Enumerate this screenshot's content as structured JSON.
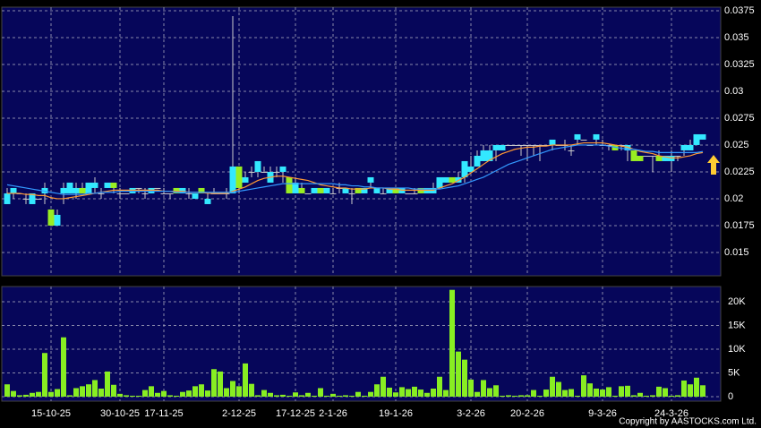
{
  "chart_data": {
    "type": "candlestick",
    "categories": [
      null,
      null,
      null,
      null,
      null,
      null,
      null,
      "15-10-25",
      null,
      null,
      null,
      null,
      null,
      null,
      null,
      null,
      null,
      null,
      "30-10-25",
      null,
      null,
      null,
      null,
      null,
      null,
      "17-11-25",
      null,
      null,
      null,
      null,
      null,
      null,
      null,
      null,
      null,
      null,
      null,
      "2-12-25",
      null,
      null,
      null,
      null,
      null,
      null,
      null,
      null,
      "17-12-25",
      null,
      null,
      null,
      null,
      null,
      "2-1-26",
      null,
      null,
      null,
      null,
      null,
      null,
      null,
      null,
      null,
      "19-1-26",
      null,
      null,
      null,
      null,
      null,
      null,
      null,
      null,
      null,
      null,
      null,
      "3-2-26",
      null,
      null,
      null,
      null,
      null,
      null,
      null,
      null,
      "20-2-26",
      null,
      null,
      null,
      null,
      null,
      null,
      null,
      null,
      null,
      null,
      null,
      "9-3-26",
      null,
      null,
      null,
      null,
      null,
      null,
      null,
      null,
      null,
      null,
      "24-3-26",
      null,
      null,
      null,
      null,
      null
    ],
    "open": [
      0.0195,
      0.0205,
      0.0205,
      0.02,
      0.0195,
      0.02,
      0.0205,
      0.019,
      0.0175,
      0.0205,
      0.0205,
      0.0205,
      0.021,
      0.0205,
      0.021,
      0.0205,
      0.021,
      0.0215,
      0.0205,
      0.0205,
      0.0205,
      0.021,
      0.0205,
      0.0205,
      0.021,
      0.0205,
      0.0205,
      0.021,
      0.0205,
      0.0205,
      0.02,
      0.021,
      0.0195,
      0.0205,
      0.0205,
      0.0205,
      0.0205,
      0.023,
      0.0215,
      0.0225,
      0.0225,
      0.0225,
      0.0215,
      0.0225,
      0.0225,
      0.022,
      0.0205,
      0.021,
      0.0205,
      0.0205,
      0.021,
      0.0205,
      0.0205,
      0.021,
      0.0205,
      0.0205,
      0.021,
      0.0205,
      0.0215,
      0.0205,
      0.0205,
      0.0205,
      0.021,
      0.0205,
      0.0205,
      0.0205,
      0.021,
      0.0205,
      0.0205,
      0.021,
      0.0215,
      0.022,
      0.0215,
      0.022,
      0.0225,
      0.023,
      0.0235,
      0.0235,
      0.0245,
      0.0245,
      0.025,
      0.025,
      0.025,
      0.025,
      0.025,
      0.025,
      0.025,
      0.025,
      0.025,
      0.025,
      0.0245,
      0.0255,
      0.0255,
      0.025,
      0.0255,
      0.025,
      0.025,
      0.025,
      0.025,
      0.0245,
      0.0245,
      0.024,
      0.024,
      0.024,
      0.024,
      0.0235,
      0.0235,
      0.024,
      0.0245,
      0.0245,
      0.025,
      0.0255
    ],
    "high": [
      0.021,
      0.021,
      0.0205,
      0.0205,
      0.0205,
      0.02,
      0.0215,
      0.019,
      0.019,
      0.0215,
      0.0215,
      0.0215,
      0.0215,
      0.0215,
      0.022,
      0.021,
      0.0215,
      0.0215,
      0.021,
      0.0205,
      0.021,
      0.021,
      0.021,
      0.021,
      0.021,
      0.021,
      0.0205,
      0.021,
      0.021,
      0.021,
      0.0205,
      0.021,
      0.0205,
      0.021,
      0.0205,
      0.021,
      0.037,
      0.023,
      0.0225,
      0.023,
      0.0235,
      0.023,
      0.023,
      0.023,
      0.023,
      0.022,
      0.022,
      0.0215,
      0.0205,
      0.021,
      0.021,
      0.021,
      0.021,
      0.0215,
      0.021,
      0.021,
      0.021,
      0.021,
      0.022,
      0.021,
      0.021,
      0.021,
      0.021,
      0.021,
      0.0205,
      0.021,
      0.021,
      0.021,
      0.0215,
      0.022,
      0.022,
      0.022,
      0.0225,
      0.0235,
      0.024,
      0.0245,
      0.025,
      0.025,
      0.025,
      0.025,
      0.025,
      0.025,
      0.025,
      0.025,
      0.025,
      0.025,
      0.025,
      0.0255,
      0.025,
      0.0255,
      0.025,
      0.026,
      0.0255,
      0.025,
      0.026,
      0.0255,
      0.025,
      0.025,
      0.025,
      0.025,
      0.0245,
      0.024,
      0.024,
      0.024,
      0.0245,
      0.024,
      0.0245,
      0.024,
      0.025,
      0.0255,
      0.026,
      0.026
    ],
    "low": [
      0.0195,
      0.02,
      0.0205,
      0.0195,
      0.0195,
      0.02,
      0.0195,
      0.0175,
      0.0175,
      0.0195,
      0.0205,
      0.02,
      0.0205,
      0.0205,
      0.0205,
      0.02,
      0.021,
      0.0205,
      0.02,
      0.0205,
      0.0205,
      0.0205,
      0.02,
      0.0205,
      0.021,
      0.0205,
      0.02,
      0.0205,
      0.0205,
      0.02,
      0.02,
      0.0205,
      0.0195,
      0.0205,
      0.0205,
      0.02,
      0.0205,
      0.0205,
      0.0215,
      0.022,
      0.022,
      0.0225,
      0.0215,
      0.022,
      0.0215,
      0.0205,
      0.0205,
      0.0205,
      0.0205,
      0.0205,
      0.0205,
      0.0205,
      0.0205,
      0.0205,
      0.0205,
      0.0195,
      0.0205,
      0.0205,
      0.021,
      0.0205,
      0.0205,
      0.0205,
      0.0205,
      0.0205,
      0.0205,
      0.0205,
      0.0205,
      0.0205,
      0.0205,
      0.021,
      0.0215,
      0.0215,
      0.0215,
      0.0215,
      0.0225,
      0.023,
      0.0235,
      0.0235,
      0.0235,
      0.0245,
      0.025,
      0.025,
      0.024,
      0.0235,
      0.024,
      0.0235,
      0.025,
      0.0245,
      0.025,
      0.0245,
      0.024,
      0.025,
      0.0255,
      0.025,
      0.025,
      0.025,
      0.0245,
      0.0245,
      0.0245,
      0.0235,
      0.0235,
      0.0235,
      0.024,
      0.0225,
      0.0235,
      0.0235,
      0.0225,
      0.0235,
      0.024,
      0.0245,
      0.025,
      0.0255
    ],
    "close": [
      0.0205,
      0.021,
      0.0205,
      0.02,
      0.0205,
      0.02,
      0.021,
      0.0175,
      0.0185,
      0.021,
      0.0215,
      0.021,
      0.0205,
      0.0215,
      0.0215,
      0.0205,
      0.0215,
      0.021,
      0.0205,
      0.0205,
      0.021,
      0.021,
      0.0205,
      0.021,
      0.021,
      0.0205,
      0.0205,
      0.0205,
      0.021,
      0.0205,
      0.0205,
      0.0205,
      0.02,
      0.0205,
      0.0205,
      0.0205,
      0.023,
      0.021,
      0.022,
      0.0225,
      0.0235,
      0.0225,
      0.0225,
      0.0225,
      0.023,
      0.0205,
      0.0215,
      0.0205,
      0.0205,
      0.021,
      0.0205,
      0.021,
      0.0205,
      0.021,
      0.021,
      0.0205,
      0.0205,
      0.021,
      0.022,
      0.021,
      0.0205,
      0.021,
      0.0205,
      0.021,
      0.0205,
      0.0205,
      0.0205,
      0.021,
      0.021,
      0.022,
      0.022,
      0.0215,
      0.022,
      0.0235,
      0.023,
      0.024,
      0.0245,
      0.0245,
      0.025,
      0.025,
      0.025,
      0.025,
      0.025,
      0.025,
      0.025,
      0.025,
      0.025,
      0.0255,
      0.025,
      0.025,
      0.0245,
      0.026,
      0.0255,
      0.025,
      0.026,
      0.025,
      0.025,
      0.0245,
      0.025,
      0.025,
      0.0235,
      0.0235,
      0.024,
      0.024,
      0.0235,
      0.024,
      0.024,
      0.024,
      0.025,
      0.025,
      0.026,
      0.026
    ],
    "ma_short": [
      0.0205,
      0.0205,
      0.0205,
      0.0204,
      0.0204,
      0.0203,
      0.0203,
      0.0201,
      0.02,
      0.02,
      0.0201,
      0.0202,
      0.0203,
      0.0204,
      0.0205,
      0.0206,
      0.0207,
      0.0208,
      0.0208,
      0.0208,
      0.0208,
      0.0208,
      0.0208,
      0.0208,
      0.0208,
      0.0207,
      0.0207,
      0.0207,
      0.0207,
      0.0206,
      0.0206,
      0.0206,
      0.0205,
      0.0205,
      0.0205,
      0.0205,
      0.0207,
      0.0209,
      0.0211,
      0.0214,
      0.0217,
      0.0219,
      0.022,
      0.0221,
      0.0221,
      0.022,
      0.0219,
      0.0218,
      0.0217,
      0.0215,
      0.0213,
      0.0212,
      0.0211,
      0.021,
      0.021,
      0.0209,
      0.0209,
      0.0209,
      0.021,
      0.021,
      0.021,
      0.0209,
      0.0209,
      0.0208,
      0.0208,
      0.0208,
      0.0208,
      0.0208,
      0.0208,
      0.021,
      0.0212,
      0.0214,
      0.0217,
      0.022,
      0.0224,
      0.0228,
      0.0232,
      0.0236,
      0.0239,
      0.0242,
      0.0244,
      0.0246,
      0.0247,
      0.0248,
      0.0248,
      0.0249,
      0.0249,
      0.025,
      0.025,
      0.025,
      0.025,
      0.0251,
      0.0252,
      0.0252,
      0.0252,
      0.0252,
      0.0251,
      0.025,
      0.0249,
      0.0248,
      0.0246,
      0.0244,
      0.0243,
      0.0242,
      0.024,
      0.0239,
      0.0238,
      0.0238,
      0.0239,
      0.024,
      0.0242,
      0.0243
    ],
    "ma_long": [
      0.0213,
      0.0212,
      0.0211,
      0.021,
      0.0209,
      0.0208,
      0.0207,
      0.0206,
      0.0205,
      0.0204,
      0.0204,
      0.0204,
      0.0204,
      0.0205,
      0.0205,
      0.0206,
      0.0206,
      0.0206,
      0.0207,
      0.0207,
      0.0207,
      0.0207,
      0.0207,
      0.0207,
      0.0207,
      0.0207,
      0.0207,
      0.0206,
      0.0206,
      0.0206,
      0.0206,
      0.0206,
      0.0206,
      0.0206,
      0.0206,
      0.0206,
      0.0206,
      0.0207,
      0.0208,
      0.0209,
      0.021,
      0.0211,
      0.0212,
      0.0213,
      0.0214,
      0.0214,
      0.0214,
      0.0214,
      0.0214,
      0.0214,
      0.0214,
      0.0214,
      0.0214,
      0.0213,
      0.0213,
      0.0212,
      0.0212,
      0.0211,
      0.0211,
      0.021,
      0.021,
      0.021,
      0.021,
      0.021,
      0.021,
      0.0209,
      0.0209,
      0.0209,
      0.0209,
      0.0209,
      0.021,
      0.0211,
      0.0212,
      0.0214,
      0.0216,
      0.0218,
      0.022,
      0.0223,
      0.0226,
      0.0229,
      0.0232,
      0.0234,
      0.0236,
      0.0238,
      0.024,
      0.0242,
      0.0244,
      0.0246,
      0.0247,
      0.0248,
      0.0249,
      0.025,
      0.025,
      0.025,
      0.025,
      0.025,
      0.0249,
      0.0248,
      0.0247,
      0.0246,
      0.0246,
      0.0245,
      0.0244,
      0.0244,
      0.0243,
      0.0243,
      0.0243,
      0.0243,
      0.0243,
      0.0243,
      0.0243,
      0.0244
    ],
    "volume": [
      2600,
      1200,
      300,
      400,
      800,
      1000,
      9200,
      1000,
      1600,
      12500,
      300,
      1800,
      2200,
      2600,
      3500,
      1700,
      5300,
      2500,
      600,
      300,
      200,
      200,
      1400,
      2200,
      800,
      1200,
      300,
      200,
      1000,
      1300,
      2200,
      2600,
      1300,
      5800,
      5300,
      1800,
      3300,
      2200,
      7000,
      2700,
      300,
      1400,
      800,
      300,
      400,
      200,
      900,
      300,
      800,
      200,
      1800,
      200,
      600,
      200,
      300,
      200,
      1000,
      200,
      1000,
      2600,
      4200,
      1900,
      900,
      2000,
      1600,
      2100,
      1500,
      800,
      1700,
      4200,
      1400,
      22500,
      9500,
      7800,
      3600,
      1000,
      3500,
      1800,
      2400,
      200,
      300,
      200,
      300,
      300,
      1400,
      200,
      1500,
      4200,
      3100,
      1400,
      1600,
      200,
      4500,
      2800,
      1700,
      1500,
      2000,
      200,
      2200,
      2300,
      300,
      800,
      200,
      300,
      2100,
      1800,
      200,
      300,
      3400,
      2600,
      4000,
      2400
    ],
    "up_color": "#33e8ff",
    "down_color": "#99ee22",
    "flat_color": "#cccccc",
    "ma_short_color": "#ff9933",
    "ma_long_color": "#3399ff",
    "volume_color": "#88ee22",
    "ylim": [
      0.01283,
      0.03783
    ],
    "yticks": [
      0.015,
      0.0175,
      0.02,
      0.0225,
      0.025,
      0.0275,
      0.03,
      0.0325,
      0.035,
      0.0375
    ],
    "volume_ylim": [
      -940,
      23200
    ],
    "volume_yticks": [
      0,
      {
        "value": 5000,
        "label": "5K"
      },
      {
        "value": 10000,
        "label": "10K"
      },
      {
        "value": 15000,
        "label": "15K"
      },
      {
        "value": 20000,
        "label": "20K"
      }
    ],
    "grid": true,
    "copyright": "Copyright by AASTOCKS.com Ltd."
  }
}
